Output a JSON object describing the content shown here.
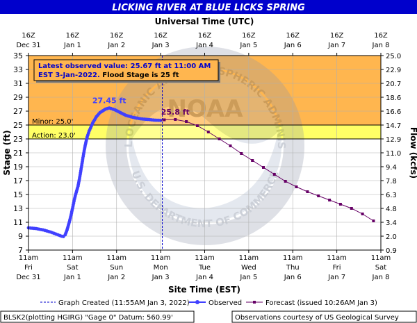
{
  "title": "LICKING RIVER AT BLUE LICKS SPRING",
  "top_axis_title": "Universal Time (UTC)",
  "bottom_axis_title": "Site Time (EST)",
  "y_left_label": "Stage (ft)",
  "y_right_label": "Flow (kcfs)",
  "watermark_text": [
    "NATIONAL OCEANIC AND ATMOSPHERIC ADMINISTRATION",
    "U.S. DEPARTMENT OF COMMERCE",
    "NOAA"
  ],
  "info_box": {
    "line1": "Latest observed value: 25.67 ft at 11:00 AM",
    "line2_blue": "EST 3-Jan-2022.",
    "line2_black": " Flood Stage is 25 ft"
  },
  "legend": {
    "graph_created": "Graph Created (11:55AM Jan 3, 2022)",
    "observed": "Observed",
    "forecast": "Forecast (issued 10:26AM Jan 3)"
  },
  "footer": {
    "left": "BLSK2(plotting HGIRG) \"Gage 0\" Datum:  560.99'",
    "right": "Observations courtesy of US Geological Survey"
  },
  "colors": {
    "title_bg": "#0000cc",
    "observed": "#4040ff",
    "forecast": "#660066",
    "flood_zone": "#ffb64f",
    "action_zone": "#ffff66",
    "info_text": "#0000cc",
    "crest_obs_label": "#4040ff",
    "crest_fc_label": "#660066"
  },
  "chart_data": {
    "type": "line",
    "xlim": [
      "2021-12-31 11:00",
      "2022-01-08 11:00"
    ],
    "ylim": [
      7,
      35
    ],
    "y_right_lim_kcfs": [
      0.9,
      25.0
    ],
    "top_ticks": [
      {
        "t": "2021-12-31 11:00",
        "l1": "16Z",
        "l2": "Dec 31"
      },
      {
        "t": "2022-01-01 11:00",
        "l1": "16Z",
        "l2": "Jan 1"
      },
      {
        "t": "2022-01-02 11:00",
        "l1": "16Z",
        "l2": "Jan 2"
      },
      {
        "t": "2022-01-03 11:00",
        "l1": "16Z",
        "l2": "Jan 3"
      },
      {
        "t": "2022-01-04 11:00",
        "l1": "16Z",
        "l2": "Jan 4"
      },
      {
        "t": "2022-01-05 11:00",
        "l1": "16Z",
        "l2": "Jan 5"
      },
      {
        "t": "2022-01-06 11:00",
        "l1": "16Z",
        "l2": "Jan 6"
      },
      {
        "t": "2022-01-07 11:00",
        "l1": "16Z",
        "l2": "Jan 7"
      },
      {
        "t": "2022-01-08 11:00",
        "l1": "16Z",
        "l2": "Jan 8"
      }
    ],
    "bottom_ticks": [
      {
        "t": "2021-12-31 11:00",
        "l1": "11am",
        "l2": "Fri",
        "l3": "Dec 31"
      },
      {
        "t": "2022-01-01 11:00",
        "l1": "11am",
        "l2": "Sat",
        "l3": "Jan 1"
      },
      {
        "t": "2022-01-02 11:00",
        "l1": "11am",
        "l2": "Sun",
        "l3": "Jan 2"
      },
      {
        "t": "2022-01-03 11:00",
        "l1": "11am",
        "l2": "Mon",
        "l3": "Jan 3"
      },
      {
        "t": "2022-01-04 11:00",
        "l1": "11am",
        "l2": "Tue",
        "l3": "Jan 4"
      },
      {
        "t": "2022-01-05 11:00",
        "l1": "11am",
        "l2": "Wed",
        "l3": "Jan 5"
      },
      {
        "t": "2022-01-06 11:00",
        "l1": "11am",
        "l2": "Thu",
        "l3": "Jan 6"
      },
      {
        "t": "2022-01-07 11:00",
        "l1": "11am",
        "l2": "Fri",
        "l3": "Jan 7"
      },
      {
        "t": "2022-01-08 11:00",
        "l1": "11am",
        "l2": "Sat",
        "l3": "Jan 8"
      }
    ],
    "y_left_ticks": [
      7,
      9,
      11,
      13,
      15,
      17,
      19,
      21,
      23,
      25,
      27,
      29,
      31,
      33,
      35
    ],
    "y_right_ticks": [
      {
        "stage": 7,
        "label": "0.9"
      },
      {
        "stage": 9,
        "label": "2.0"
      },
      {
        "stage": 11,
        "label": "3.4"
      },
      {
        "stage": 13,
        "label": "4.8"
      },
      {
        "stage": 15,
        "label": "6.3"
      },
      {
        "stage": 17,
        "label": "7.8"
      },
      {
        "stage": 19,
        "label": "9.4"
      },
      {
        "stage": 21,
        "label": "11.0"
      },
      {
        "stage": 23,
        "label": "12.9"
      },
      {
        "stage": 25,
        "label": "14.7"
      },
      {
        "stage": 27,
        "label": "16.6"
      },
      {
        "stage": 29,
        "label": "18.6"
      },
      {
        "stage": 31,
        "label": "20.7"
      },
      {
        "stage": 33,
        "label": "22.9"
      },
      {
        "stage": 35,
        "label": "25.0"
      }
    ],
    "thresholds": [
      {
        "name": "Minor",
        "value": 25.0,
        "label": "Minor: 25.0'"
      },
      {
        "name": "Action",
        "value": 23.0,
        "label": "Action: 23.0'"
      }
    ],
    "graph_created_time": "2022-01-03 11:55",
    "observed": [
      {
        "t": "2021-12-31 11:00",
        "y": 10.2
      },
      {
        "t": "2021-12-31 15:00",
        "y": 10.1
      },
      {
        "t": "2021-12-31 19:00",
        "y": 9.9
      },
      {
        "t": "2021-12-31 23:00",
        "y": 9.6
      },
      {
        "t": "2022-01-01 02:00",
        "y": 9.3
      },
      {
        "t": "2022-01-01 05:00",
        "y": 9.0
      },
      {
        "t": "2022-01-01 06:00",
        "y": 8.95
      },
      {
        "t": "2022-01-01 07:00",
        "y": 9.2
      },
      {
        "t": "2022-01-01 08:00",
        "y": 9.9
      },
      {
        "t": "2022-01-01 09:00",
        "y": 10.8
      },
      {
        "t": "2022-01-01 10:00",
        "y": 11.8
      },
      {
        "t": "2022-01-01 11:00",
        "y": 13.0
      },
      {
        "t": "2022-01-01 12:00",
        "y": 14.3
      },
      {
        "t": "2022-01-01 13:00",
        "y": 15.3
      },
      {
        "t": "2022-01-01 14:00",
        "y": 16.2
      },
      {
        "t": "2022-01-01 15:00",
        "y": 17.6
      },
      {
        "t": "2022-01-01 16:00",
        "y": 19.2
      },
      {
        "t": "2022-01-01 17:00",
        "y": 20.8
      },
      {
        "t": "2022-01-01 18:00",
        "y": 22.2
      },
      {
        "t": "2022-01-01 19:00",
        "y": 23.3
      },
      {
        "t": "2022-01-01 20:00",
        "y": 24.1
      },
      {
        "t": "2022-01-01 22:00",
        "y": 25.3
      },
      {
        "t": "2022-01-02 00:00",
        "y": 26.2
      },
      {
        "t": "2022-01-02 02:00",
        "y": 26.8
      },
      {
        "t": "2022-01-02 05:00",
        "y": 27.3
      },
      {
        "t": "2022-01-02 07:00",
        "y": 27.45
      },
      {
        "t": "2022-01-02 10:00",
        "y": 27.2
      },
      {
        "t": "2022-01-02 13:00",
        "y": 26.8
      },
      {
        "t": "2022-01-02 16:00",
        "y": 26.4
      },
      {
        "t": "2022-01-02 20:00",
        "y": 26.1
      },
      {
        "t": "2022-01-03 00:00",
        "y": 25.9
      },
      {
        "t": "2022-01-03 04:00",
        "y": 25.8
      },
      {
        "t": "2022-01-03 08:00",
        "y": 25.7
      },
      {
        "t": "2022-01-03 11:00",
        "y": 25.67
      }
    ],
    "forecast": [
      {
        "t": "2022-01-03 11:00",
        "y": 25.67
      },
      {
        "t": "2022-01-03 13:00",
        "y": 25.75
      },
      {
        "t": "2022-01-03 19:00",
        "y": 25.8
      },
      {
        "t": "2022-01-04 01:00",
        "y": 25.5
      },
      {
        "t": "2022-01-04 07:00",
        "y": 24.9
      },
      {
        "t": "2022-01-04 13:00",
        "y": 24.0
      },
      {
        "t": "2022-01-04 19:00",
        "y": 23.0
      },
      {
        "t": "2022-01-05 01:00",
        "y": 22.0
      },
      {
        "t": "2022-01-05 07:00",
        "y": 20.9
      },
      {
        "t": "2022-01-05 13:00",
        "y": 19.9
      },
      {
        "t": "2022-01-05 19:00",
        "y": 18.9
      },
      {
        "t": "2022-01-06 01:00",
        "y": 17.9
      },
      {
        "t": "2022-01-06 07:00",
        "y": 16.9
      },
      {
        "t": "2022-01-06 13:00",
        "y": 16.1
      },
      {
        "t": "2022-01-06 19:00",
        "y": 15.4
      },
      {
        "t": "2022-01-07 01:00",
        "y": 14.8
      },
      {
        "t": "2022-01-07 07:00",
        "y": 14.2
      },
      {
        "t": "2022-01-07 13:00",
        "y": 13.6
      },
      {
        "t": "2022-01-07 19:00",
        "y": 13.0
      },
      {
        "t": "2022-01-08 01:00",
        "y": 12.2
      },
      {
        "t": "2022-01-08 07:00",
        "y": 11.2
      }
    ],
    "annotations": [
      {
        "label": "27.45 ft",
        "t": "2022-01-02 07:00",
        "y": 27.45,
        "series": "observed"
      },
      {
        "label": "25.8 ft",
        "t": "2022-01-03 19:00",
        "y": 25.8,
        "series": "forecast"
      }
    ]
  }
}
